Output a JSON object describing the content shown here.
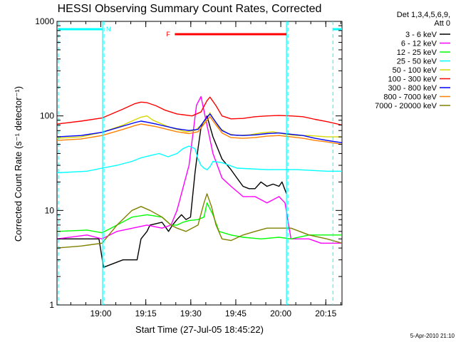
{
  "chart_data": {
    "type": "line",
    "title": "HESSI Observing Summary Count Rates, Corrected",
    "xlabel": "Start Time (27-Jul-05 18:45:22)",
    "ylabel": "Corrected Count Rate (s⁻¹ detector⁻¹)",
    "x_unit": "minutes after 18:45:22",
    "xlim": [
      0,
      95
    ],
    "ylim": [
      1,
      1000
    ],
    "y_scale": "log",
    "x_ticks": [
      {
        "label": "19:00",
        "x": 14.6
      },
      {
        "label": "19:15",
        "x": 29.6
      },
      {
        "label": "19:30",
        "x": 44.6
      },
      {
        "label": "19:45",
        "x": 59.6
      },
      {
        "label": "20:00",
        "x": 74.6
      },
      {
        "label": "20:15",
        "x": 89.6
      }
    ],
    "y_ticks": [
      {
        "label": "1",
        "y": 1
      },
      {
        "label": "10",
        "y": 10
      },
      {
        "label": "100",
        "y": 100
      },
      {
        "label": "1000",
        "y": 1000
      }
    ],
    "legend": {
      "position": "right",
      "header": [
        "Det 1,3,4,5,6,9,",
        "Att 0"
      ],
      "entries": [
        {
          "label": "3 - 6 keV",
          "color": "#000000"
        },
        {
          "label": "6 - 12 keV",
          "color": "#ff00ff"
        },
        {
          "label": "12 - 25 keV",
          "color": "#00ff00"
        },
        {
          "label": "25 - 50 keV",
          "color": "#00ffff"
        },
        {
          "label": "50 - 100 keV",
          "color": "#d8d800"
        },
        {
          "label": "100 - 300 keV",
          "color": "#ff0000"
        },
        {
          "label": "300 - 800 keV",
          "color": "#0000ff"
        },
        {
          "label": "800 - 7000 keV",
          "color": "#ff8000"
        },
        {
          "label": "7000 - 20000 keV",
          "color": "#808000"
        }
      ]
    },
    "flags": [
      {
        "label": "N",
        "color": "#00ffff",
        "spans": [
          [
            0,
            15.2
          ],
          [
            91.5,
            95
          ]
        ]
      },
      {
        "label": "F",
        "color": "#ff0000",
        "spans": [
          [
            38.8,
            76.5
          ]
        ]
      }
    ],
    "vlines_solid": [
      15.2,
      76.5
    ],
    "vlines_dashed": [
      0,
      15.2,
      76.5,
      91.5
    ],
    "series": [
      {
        "name": "3 - 6 keV",
        "color": "#000000",
        "x": [
          0,
          14,
          15.5,
          22,
          26.7,
          28,
          30,
          31,
          35,
          37.2,
          38.5,
          40,
          41.5,
          43,
          44.5,
          46,
          47,
          48,
          50,
          52,
          55,
          58,
          60,
          62,
          64,
          66,
          68,
          70,
          72,
          74,
          75,
          76.5
        ],
        "y": [
          5,
          5,
          2.5,
          3,
          3,
          5,
          6,
          7,
          7.5,
          6,
          7,
          8,
          9,
          8,
          8.5,
          25,
          45,
          75,
          100,
          60,
          35,
          27,
          22,
          18,
          17,
          17,
          20,
          18,
          19,
          18,
          20,
          15
        ]
      },
      {
        "name": "6 - 12 keV",
        "color": "#ff00ff",
        "x": [
          0,
          10,
          15,
          20,
          30,
          35,
          38,
          40,
          44,
          46.5,
          48,
          50,
          52,
          55,
          58,
          62,
          66,
          70,
          74,
          76,
          78,
          84,
          88,
          95
        ],
        "y": [
          5,
          5.5,
          5,
          6,
          7,
          6.5,
          7,
          10,
          30,
          130,
          160,
          80,
          40,
          22,
          18,
          14,
          14,
          12,
          14,
          12,
          5,
          5,
          4.5,
          4.5
        ]
      },
      {
        "name": "12 - 25 keV",
        "color": "#00ff00",
        "x": [
          0,
          10,
          15,
          20,
          25,
          30,
          35,
          38,
          40,
          42,
          44,
          47,
          49,
          50,
          52,
          54,
          58,
          62,
          68,
          74,
          78,
          84,
          90,
          95
        ],
        "y": [
          6,
          6.2,
          5.8,
          7,
          8.5,
          9,
          8.5,
          7,
          7,
          7.5,
          7.8,
          8,
          8.5,
          12,
          9,
          6,
          5.5,
          5.2,
          5,
          5.2,
          5,
          5.5,
          5.5,
          5.5
        ]
      },
      {
        "name": "25 - 50 keV",
        "color": "#00ffff",
        "x": [
          0,
          10,
          15,
          20,
          25,
          28,
          31,
          34,
          37,
          40,
          42,
          44,
          46,
          47,
          48,
          49,
          50,
          51,
          52,
          55,
          60,
          70,
          80,
          90,
          95
        ],
        "y": [
          25,
          26,
          28,
          30,
          33,
          36,
          38,
          40,
          37,
          40,
          45,
          48,
          45,
          35,
          30,
          28,
          27,
          29,
          33,
          32,
          28,
          27,
          27,
          26,
          26
        ]
      },
      {
        "name": "50 - 100 keV",
        "color": "#d8d800",
        "x": [
          0,
          8,
          15,
          22,
          28,
          30,
          32,
          35,
          38,
          40,
          43,
          46,
          49,
          51,
          52,
          54,
          57,
          60,
          64,
          68,
          72,
          76,
          80,
          84,
          90,
          95
        ],
        "y": [
          58,
          60,
          67,
          80,
          97,
          100,
          90,
          82,
          75,
          72,
          68,
          70,
          85,
          108,
          95,
          75,
          65,
          62,
          63,
          66,
          68,
          64,
          62,
          62,
          60,
          60
        ]
      },
      {
        "name": "100 - 300 keV",
        "color": "#ff0000",
        "x": [
          0,
          8,
          15,
          22,
          26,
          28,
          30,
          33,
          36,
          40,
          45,
          48,
          50,
          51,
          53,
          55,
          58,
          62,
          66,
          70,
          74,
          78,
          82,
          86,
          90,
          95
        ],
        "y": [
          82,
          88,
          95,
          118,
          135,
          140,
          138,
          128,
          115,
          105,
          100,
          110,
          145,
          158,
          128,
          100,
          93,
          94,
          98,
          100,
          101,
          100,
          98,
          92,
          87,
          80
        ]
      },
      {
        "name": "300 - 800 keV",
        "color": "#0000ff",
        "x": [
          0,
          8,
          15,
          22,
          26,
          28,
          30,
          33,
          36,
          40,
          44,
          47,
          49,
          51,
          53,
          55,
          58,
          62,
          66,
          70,
          74,
          78,
          82,
          86,
          90,
          95
        ],
        "y": [
          60,
          62,
          67,
          78,
          85,
          88,
          86,
          82,
          78,
          73,
          70,
          72,
          88,
          105,
          85,
          70,
          63,
          62,
          63,
          65,
          66,
          64,
          62,
          58,
          55,
          52
        ]
      },
      {
        "name": "800 - 7000 keV",
        "color": "#ff8000",
        "x": [
          0,
          8,
          15,
          22,
          26,
          28,
          30,
          33,
          36,
          40,
          44,
          47,
          49,
          51,
          53,
          55,
          58,
          62,
          66,
          70,
          74,
          78,
          82,
          86,
          90,
          95
        ],
        "y": [
          55,
          57,
          62,
          72,
          79,
          82,
          80,
          77,
          73,
          68,
          65,
          68,
          82,
          98,
          80,
          66,
          59,
          58,
          59,
          61,
          62,
          60,
          58,
          55,
          53,
          50
        ]
      },
      {
        "name": "7000 - 20000 keV",
        "color": "#808000",
        "x": [
          0,
          8,
          15,
          20,
          25,
          28,
          31,
          35,
          38,
          40,
          43,
          47,
          49,
          50,
          51.5,
          53,
          55,
          58,
          62,
          66,
          70,
          74,
          78,
          84,
          90,
          95
        ],
        "y": [
          4,
          4.2,
          4.5,
          7,
          10,
          11,
          10,
          8.5,
          7,
          6.5,
          6,
          7,
          12,
          15,
          11,
          7,
          5,
          4.8,
          5.5,
          6,
          6.5,
          6.5,
          6.5,
          5.5,
          5,
          4.5
        ]
      }
    ],
    "grid": false
  },
  "footer": {
    "timestamp": "5-Apr-2010 21:10"
  }
}
